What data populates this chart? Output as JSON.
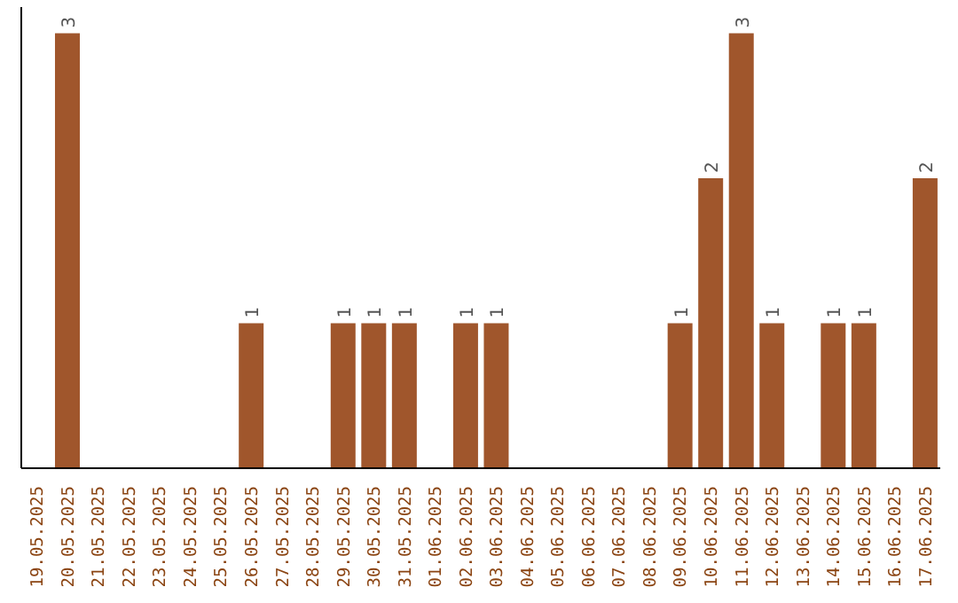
{
  "chart_data": {
    "type": "bar",
    "categories": [
      "19.05.2025",
      "20.05.2025",
      "21.05.2025",
      "22.05.2025",
      "23.05.2025",
      "24.05.2025",
      "25.05.2025",
      "26.05.2025",
      "27.05.2025",
      "28.05.2025",
      "29.05.2025",
      "30.05.2025",
      "31.05.2025",
      "01.06.2025",
      "02.06.2025",
      "03.06.2025",
      "04.06.2025",
      "05.06.2025",
      "06.06.2025",
      "07.06.2025",
      "08.06.2025",
      "09.06.2025",
      "10.06.2025",
      "11.06.2025",
      "12.06.2025",
      "13.06.2025",
      "14.06.2025",
      "15.06.2025",
      "16.06.2025",
      "17.06.2025"
    ],
    "values": [
      0,
      3,
      0,
      0,
      0,
      0,
      0,
      1,
      0,
      0,
      1,
      1,
      1,
      0,
      1,
      1,
      0,
      0,
      0,
      0,
      0,
      1,
      2,
      3,
      1,
      0,
      1,
      1,
      0,
      2
    ],
    "value_labels": [
      null,
      "3",
      null,
      null,
      null,
      null,
      null,
      "1",
      null,
      null,
      "1",
      "1",
      "1",
      null,
      "1",
      "1",
      null,
      null,
      null,
      null,
      null,
      "1",
      "2",
      "3",
      "1",
      null,
      "1",
      "1",
      null,
      "2"
    ],
    "color": "#a0562c"
  }
}
